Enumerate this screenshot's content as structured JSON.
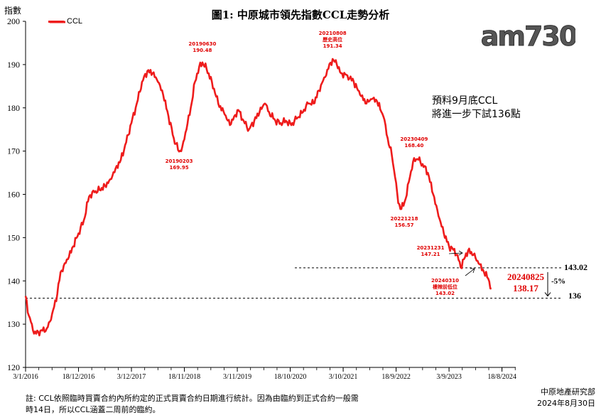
{
  "title": "圖1: 中原城市領先指數CCL走勢分析",
  "watermark": "am730",
  "forecast_lines": [
    "預料9月底CCL",
    "將進一步下試136點"
  ],
  "latest": {
    "date": "20240825",
    "value": "138.17"
  },
  "ref_values": {
    "upper": "143.02",
    "lower": "136",
    "pct": "-5%"
  },
  "note_lines": [
    "註: CCL依照臨時買賣合約內所約定的正式買賣合約日期進行統計。因為由臨約到正式合約一般需",
    "時14日，所以CCL涵蓋二周前的臨約。"
  ],
  "source_lines": [
    "中原地產研究部",
    "2024年8月30日"
  ],
  "colors": {
    "line": "#ee1c1c",
    "annotation": "#e00000",
    "axis": "#000000"
  },
  "chart_data": {
    "type": "line",
    "ylabel": "指數",
    "ylim": [
      120,
      200
    ],
    "yticks": [
      120,
      130,
      140,
      150,
      160,
      170,
      180,
      190,
      200
    ],
    "xticks": [
      "3/1/2016",
      "18/12/2016",
      "3/12/2017",
      "18/11/2018",
      "3/11/2019",
      "18/10/2020",
      "3/10/2021",
      "18/9/2022",
      "3/9/2023",
      "18/8/2024"
    ],
    "xtick_weeks": [
      0,
      50,
      100,
      150,
      200,
      250,
      300,
      350,
      400,
      450
    ],
    "legend_position": "top-left",
    "series": [
      {
        "name": "CCL",
        "points": [
          [
            0,
            136.5
          ],
          [
            3,
            132
          ],
          [
            6,
            130
          ],
          [
            8,
            127.8
          ],
          [
            12,
            128.2
          ],
          [
            16,
            128.5
          ],
          [
            20,
            129
          ],
          [
            24,
            131
          ],
          [
            27,
            134
          ],
          [
            30,
            137
          ],
          [
            33,
            142
          ],
          [
            36,
            143.5
          ],
          [
            40,
            145
          ],
          [
            45,
            148
          ],
          [
            50,
            151
          ],
          [
            55,
            154
          ],
          [
            60,
            159.5
          ],
          [
            65,
            160.5
          ],
          [
            70,
            161
          ],
          [
            75,
            162
          ],
          [
            80,
            163.5
          ],
          [
            85,
            166
          ],
          [
            90,
            168
          ],
          [
            95,
            172
          ],
          [
            100,
            176.5
          ],
          [
            105,
            181
          ],
          [
            110,
            186
          ],
          [
            115,
            188.5
          ],
          [
            120,
            188
          ],
          [
            125,
            186
          ],
          [
            130,
            183
          ],
          [
            135,
            178
          ],
          [
            140,
            173
          ],
          [
            145,
            169.9
          ],
          [
            148,
            171
          ],
          [
            152,
            175
          ],
          [
            156,
            180
          ],
          [
            160,
            186
          ],
          [
            164,
            189.5
          ],
          [
            167,
            190.5
          ],
          [
            171,
            189
          ],
          [
            176,
            186
          ],
          [
            182,
            181
          ],
          [
            188,
            178.5
          ],
          [
            193,
            176
          ],
          [
            197,
            178
          ],
          [
            201,
            179.5
          ],
          [
            206,
            177
          ],
          [
            211,
            175
          ],
          [
            216,
            177
          ],
          [
            221,
            179
          ],
          [
            226,
            181
          ],
          [
            230,
            179
          ],
          [
            236,
            177
          ],
          [
            241,
            176.5
          ],
          [
            246,
            177
          ],
          [
            251,
            176
          ],
          [
            256,
            177.5
          ],
          [
            262,
            179
          ],
          [
            267,
            181
          ],
          [
            272,
            181
          ],
          [
            277,
            184
          ],
          [
            282,
            187
          ],
          [
            286,
            189
          ],
          [
            290,
            191.3
          ],
          [
            294,
            190
          ],
          [
            298,
            188
          ],
          [
            304,
            187.5
          ],
          [
            310,
            186
          ],
          [
            316,
            183
          ],
          [
            322,
            181
          ],
          [
            327,
            182
          ],
          [
            332,
            181.5
          ],
          [
            338,
            178
          ],
          [
            342,
            173
          ],
          [
            346,
            169
          ],
          [
            349,
            164
          ],
          [
            352,
            158
          ],
          [
            355,
            156.6
          ],
          [
            359,
            159
          ],
          [
            363,
            164
          ],
          [
            367,
            168.4
          ],
          [
            371,
            168
          ],
          [
            375,
            167
          ],
          [
            380,
            165
          ],
          [
            385,
            160
          ],
          [
            390,
            155
          ],
          [
            395,
            151
          ],
          [
            400,
            148
          ],
          [
            404,
            147.2
          ],
          [
            408,
            146
          ],
          [
            411,
            143.1
          ],
          [
            414,
            145
          ],
          [
            418,
            147
          ],
          [
            423,
            146
          ],
          [
            428,
            144
          ],
          [
            433,
            142
          ],
          [
            437,
            140.5
          ],
          [
            440,
            138.17
          ]
        ]
      }
    ],
    "reference_lines": [
      {
        "value": 143.02,
        "label": "143.02",
        "style": "dashed"
      },
      {
        "value": 136,
        "label": "136",
        "style": "dashed"
      }
    ],
    "annotations": [
      {
        "week": 145,
        "value": 169.95,
        "lines": [
          "20190203",
          "169.95"
        ]
      },
      {
        "week": 167,
        "value": 190.48,
        "lines": [
          "20190630",
          "190.48"
        ]
      },
      {
        "week": 290,
        "value": 191.34,
        "lines": [
          "20210808",
          "歷史高位",
          "191.34"
        ]
      },
      {
        "week": 355,
        "value": 156.57,
        "lines": [
          "20221218",
          "156.57"
        ]
      },
      {
        "week": 367,
        "value": 168.4,
        "lines": [
          "20230409",
          "168.40"
        ]
      },
      {
        "week": 404,
        "value": 147.21,
        "lines": [
          "20231231",
          "147.21"
        ]
      },
      {
        "week": 411,
        "value": 143.02,
        "lines": [
          "20240310",
          "樓辣前低位",
          "143.02"
        ]
      }
    ]
  }
}
